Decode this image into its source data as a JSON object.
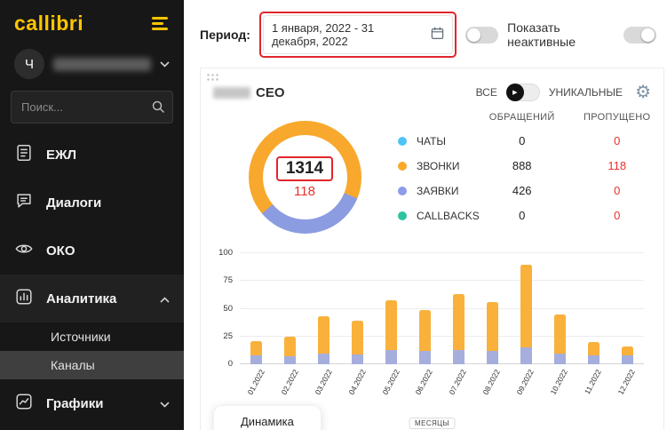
{
  "colors": {
    "accent_yellow": "#ffc400",
    "annotation_red": "#e0262c",
    "missed_red": "#e8312f",
    "orange": "#f8a82c",
    "purple": "#8c9ce0",
    "blue": "#4fc3f7",
    "teal": "#2bc3a0"
  },
  "icons": {
    "gear": "⚙",
    "play": "▶"
  },
  "sidebar": {
    "logo": "callibri",
    "user_initial": "Ч",
    "search_placeholder": "Поиск...",
    "menu": [
      {
        "label": "ЕЖЛ"
      },
      {
        "label": "Диалоги"
      },
      {
        "label": "ОКО"
      },
      {
        "label": "Аналитика"
      },
      {
        "label": "Графики"
      }
    ],
    "submenu": [
      {
        "label": "Источники"
      },
      {
        "label": "Каналы"
      }
    ]
  },
  "topbar": {
    "period_label": "Период:",
    "period_value": "1 января, 2022 - 31 декабря, 2022",
    "show_inactive_label": "Показать неактивные"
  },
  "card": {
    "title": "СЕО",
    "mode_all": "ВСЕ",
    "mode_unique": "УНИКАЛЬНЫЕ",
    "donut_total": "1314",
    "donut_missed": "118",
    "legend": {
      "col_appeals": "ОБРАЩЕНИЙ",
      "col_missed": "ПРОПУЩЕНО",
      "rows": [
        {
          "label": "ЧАТЫ",
          "color": "#4fc3f7",
          "appeals": "0",
          "missed": "0"
        },
        {
          "label": "ЗВОНКИ",
          "color": "#fba82d",
          "appeals": "888",
          "missed": "118"
        },
        {
          "label": "ЗАЯВКИ",
          "color": "#8c9ce8",
          "appeals": "426",
          "missed": "0"
        },
        {
          "label": "CALLBACKS",
          "color": "#2bc3a0",
          "appeals": "0",
          "missed": "0"
        }
      ]
    },
    "dynamics_button": "Динамика"
  },
  "chart_data": {
    "type": "bar",
    "stacked": true,
    "title": "",
    "xlabel": "МЕСЯЦЫ",
    "ylabel": "",
    "ylim": [
      0,
      100
    ],
    "yticks": [
      0,
      25,
      50,
      75,
      100
    ],
    "categories": [
      "01.2022",
      "02.2022",
      "03.2022",
      "04.2022",
      "05.2022",
      "06.2022",
      "07.2022",
      "08.2022",
      "09.2022",
      "10.2022",
      "11.2022",
      "12.2022"
    ],
    "series": [
      {
        "name": "ЗАЯВКИ",
        "color": "#a5aedd",
        "values": [
          8,
          7,
          10,
          9,
          13,
          12,
          13,
          12,
          15,
          10,
          8,
          8
        ]
      },
      {
        "name": "ЗВОНКИ",
        "color": "#f9b13c",
        "values": [
          13,
          18,
          33,
          30,
          45,
          37,
          50,
          44,
          75,
          35,
          12,
          8
        ]
      }
    ],
    "legend_position": "none",
    "grid": true
  }
}
